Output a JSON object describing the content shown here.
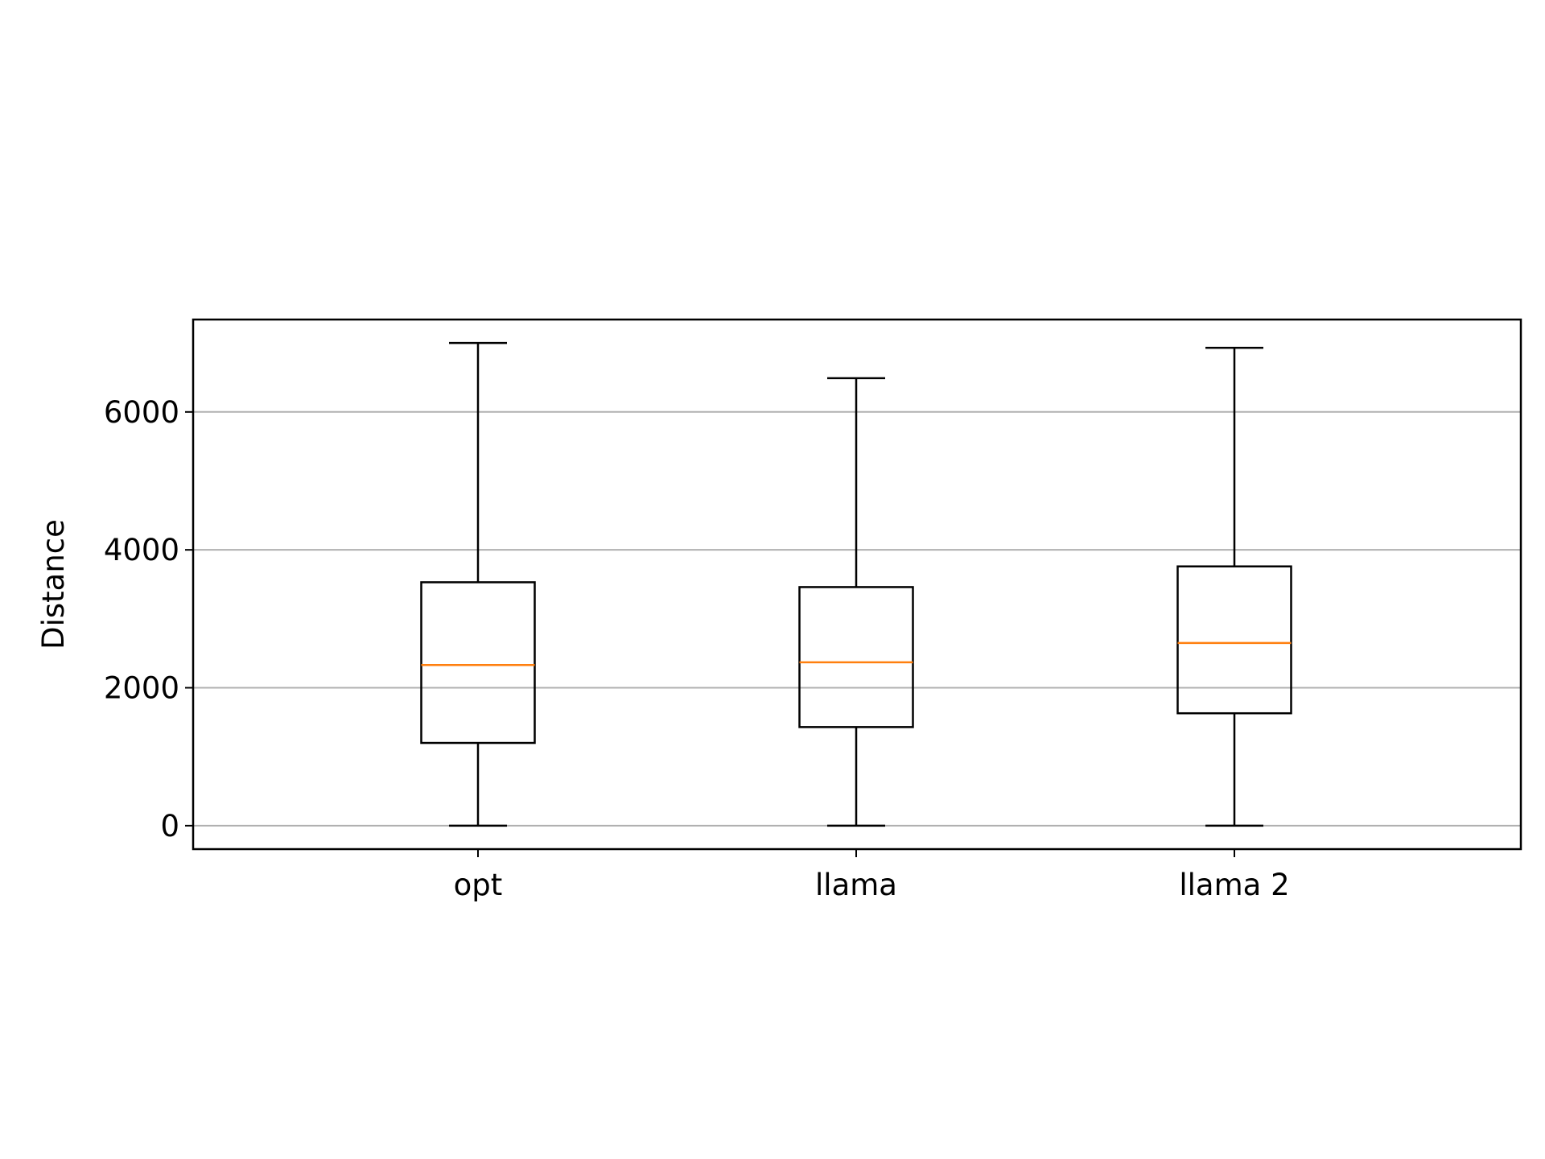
{
  "chart_data": {
    "type": "boxplot",
    "title": "",
    "xlabel": "",
    "ylabel": "Distance",
    "categories": [
      "opt",
      "llama",
      "llama 2"
    ],
    "boxes": [
      {
        "whisker_low": 0,
        "q1": 1200,
        "median": 2330,
        "q3": 3530,
        "whisker_high": 7000
      },
      {
        "whisker_low": 0,
        "q1": 1430,
        "median": 2370,
        "q3": 3460,
        "whisker_high": 6490
      },
      {
        "whisker_low": 0,
        "q1": 1630,
        "median": 2650,
        "q3": 3760,
        "whisker_high": 6930
      }
    ],
    "ylim": [
      -340,
      7340
    ],
    "yticks": [
      0,
      2000,
      4000,
      6000
    ],
    "grid": "horizontal",
    "colors": {
      "box": "#000000",
      "median": "#ff7f0e",
      "grid": "#b0b0b0",
      "axes": "#000000"
    }
  }
}
